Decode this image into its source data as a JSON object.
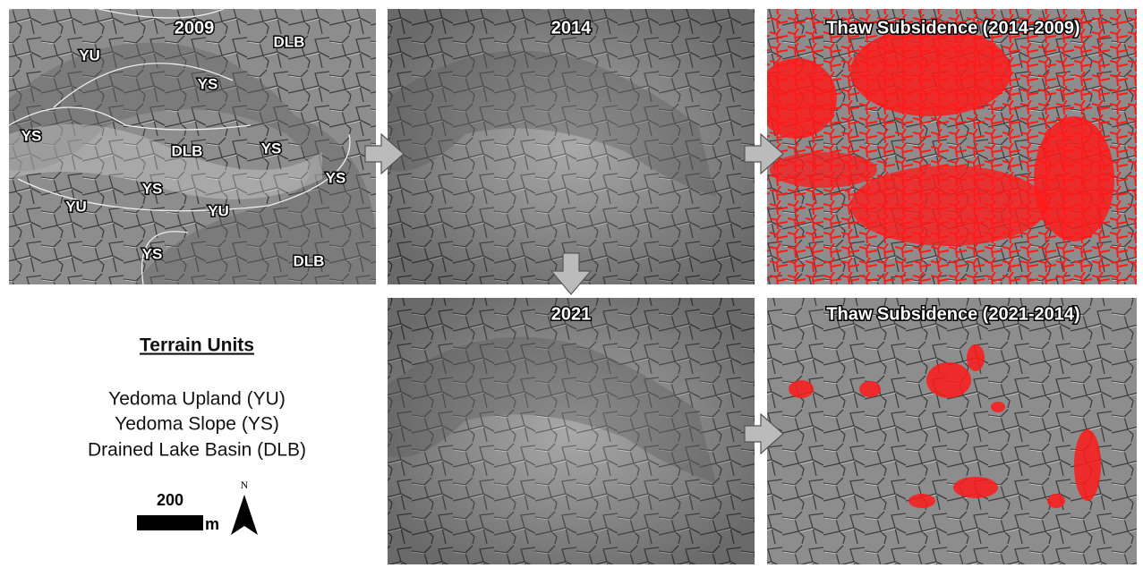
{
  "panels": [
    {
      "title": "2009",
      "labels": [
        "DLB",
        "YU",
        "YS",
        "YS",
        "DLB",
        "YS",
        "YS",
        "YS",
        "YU",
        "YU",
        "YS",
        "DLB"
      ]
    },
    {
      "title": "2014"
    },
    {
      "title": "Thaw Subsidence (2014-2009)"
    },
    {
      "title": "2021"
    },
    {
      "title": "Thaw Subsidence (2021-2014)"
    }
  ],
  "legend": {
    "title": "Terrain Units",
    "items": [
      "Yedoma Upland (YU)",
      "Yedoma Slope (YS)",
      "Drained Lake Basin (DLB)"
    ]
  },
  "scale_bar": {
    "distance": "200",
    "unit": "m"
  },
  "north_arrow": "N"
}
